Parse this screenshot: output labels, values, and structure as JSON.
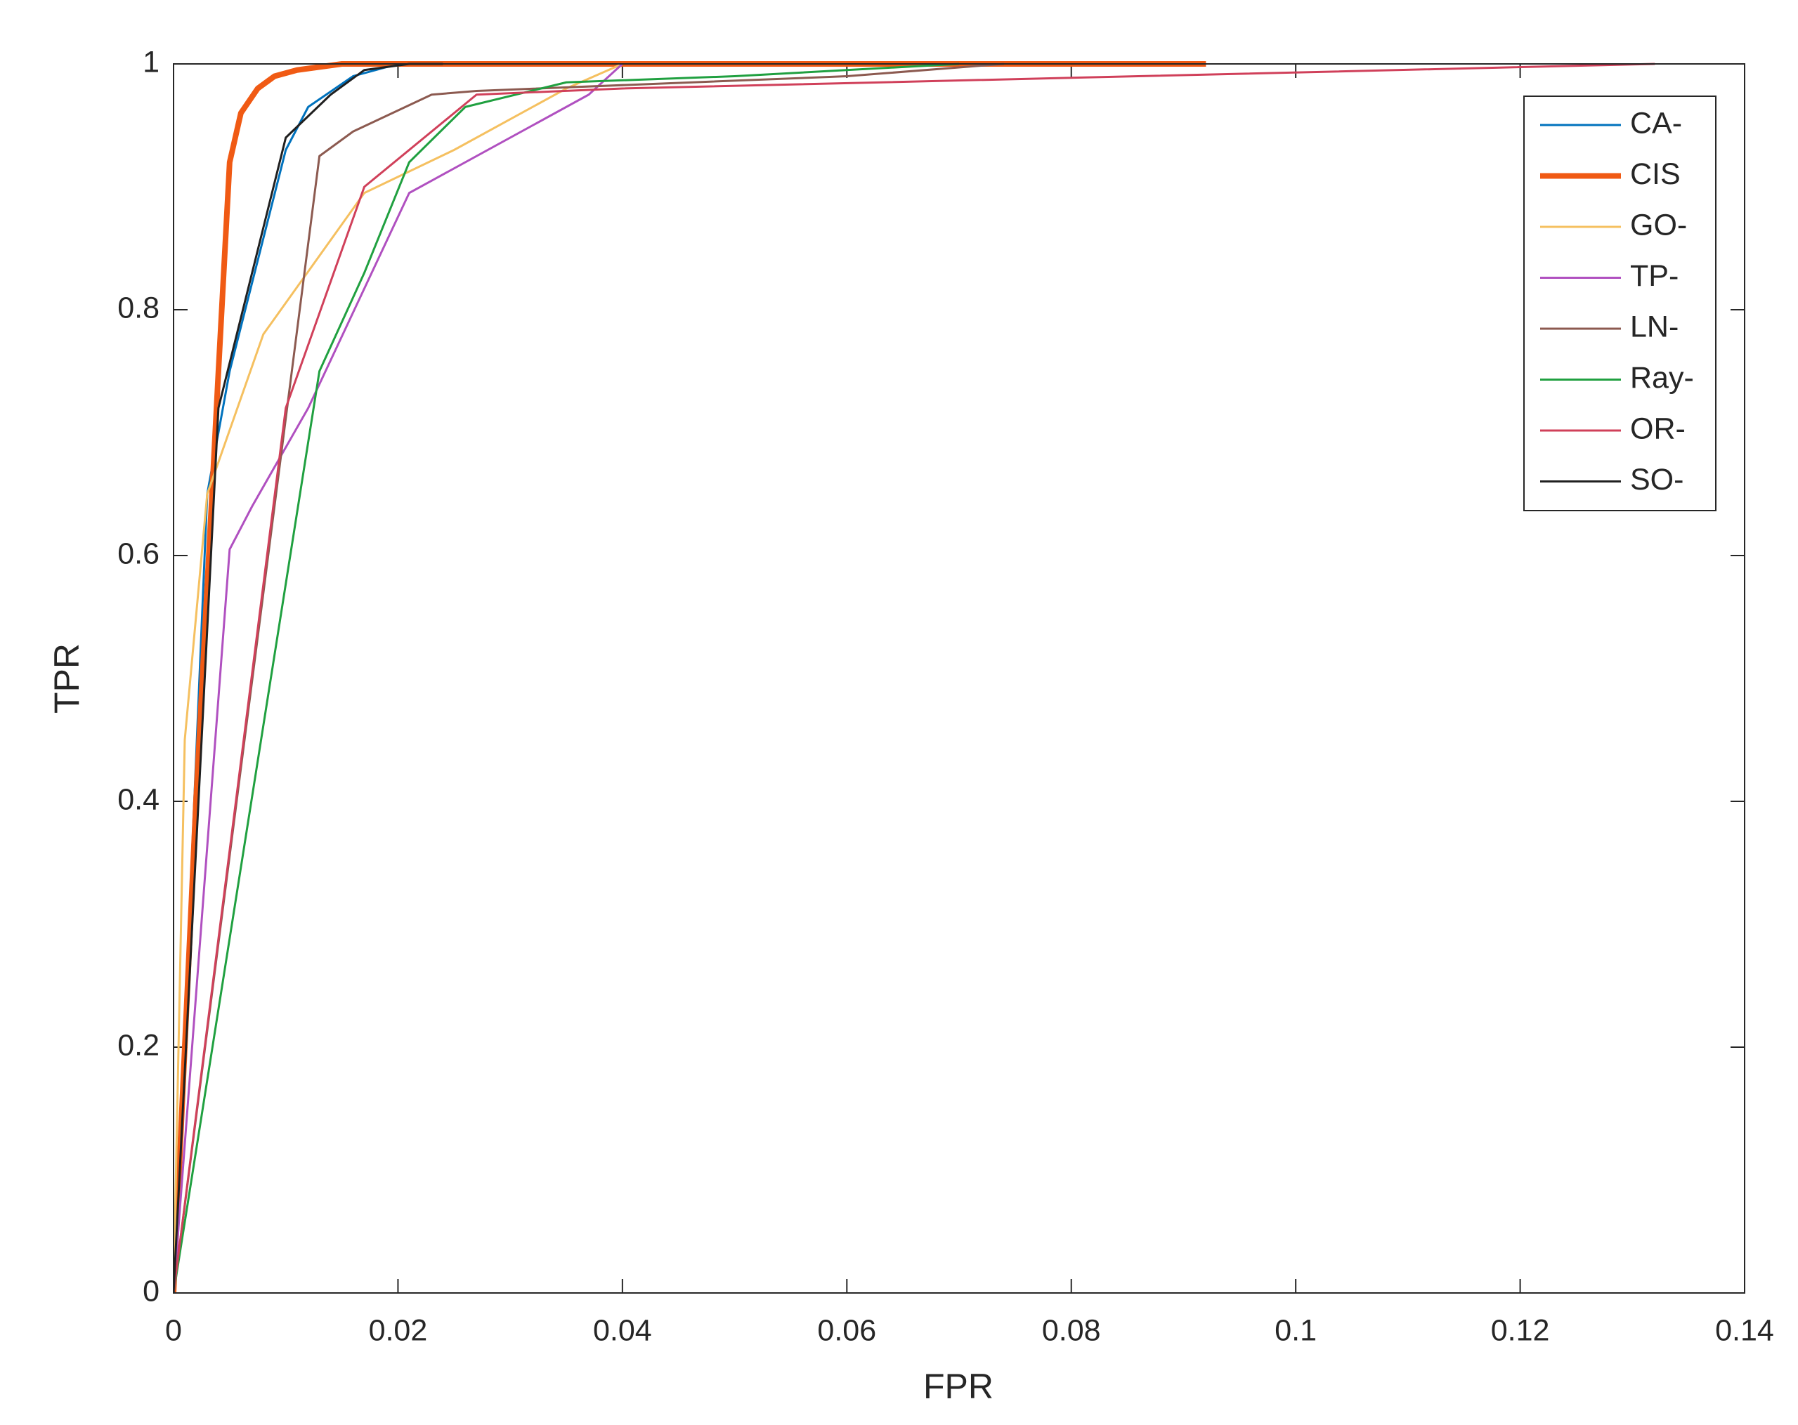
{
  "chart_data": {
    "type": "line",
    "x_label": "FPR",
    "y_label": "TPR",
    "xlim": [
      0,
      0.14
    ],
    "xticks": [
      0,
      0.02,
      0.04,
      0.06,
      0.08,
      0.1,
      0.12,
      0.14
    ],
    "ylim": [
      0,
      1
    ],
    "yticks": [
      0,
      0.2,
      0.4,
      0.6,
      0.8,
      1
    ],
    "legend": "upper-right",
    "series": [
      {
        "name": "CA-",
        "color": "#0072bd",
        "line_width": 3,
        "x": [
          0,
          0.003,
          0.005,
          0.01,
          0.012,
          0.016,
          0.02
        ],
        "values": [
          0,
          0.65,
          0.75,
          0.93,
          0.965,
          0.99,
          1
        ]
      },
      {
        "name": "CIS",
        "color": "#f05a14",
        "line_width": 8,
        "x": [
          0,
          0.002,
          0.004,
          0.005,
          0.006,
          0.0075,
          0.009,
          0.011,
          0.015,
          0.092
        ],
        "values": [
          0,
          0.4,
          0.75,
          0.92,
          0.96,
          0.98,
          0.99,
          0.995,
          1,
          1
        ]
      },
      {
        "name": "GO-",
        "color": "#f5c060",
        "line_width": 3,
        "x": [
          0,
          0.001,
          0.003,
          0.008,
          0.017,
          0.025,
          0.035,
          0.04
        ],
        "values": [
          0,
          0.45,
          0.65,
          0.78,
          0.895,
          0.93,
          0.98,
          1
        ]
      },
      {
        "name": "TP-",
        "color": "#b050c0",
        "line_width": 3,
        "x": [
          0,
          0.005,
          0.007,
          0.012,
          0.021,
          0.037,
          0.04
        ],
        "values": [
          0,
          0.605,
          0.64,
          0.72,
          0.895,
          0.975,
          1
        ]
      },
      {
        "name": "LN-",
        "color": "#8c5a50",
        "line_width": 3,
        "x": [
          0,
          0.013,
          0.016,
          0.023,
          0.027,
          0.06,
          0.074
        ],
        "values": [
          0,
          0.925,
          0.945,
          0.975,
          0.978,
          0.99,
          1
        ]
      },
      {
        "name": "Ray-",
        "color": "#20a040",
        "line_width": 3,
        "x": [
          0,
          0.013,
          0.017,
          0.021,
          0.026,
          0.035,
          0.05,
          0.07
        ],
        "values": [
          0,
          0.75,
          0.83,
          0.92,
          0.965,
          0.985,
          0.99,
          1
        ]
      },
      {
        "name": "OR-",
        "color": "#d0405a",
        "line_width": 3,
        "x": [
          0,
          0.01,
          0.017,
          0.027,
          0.04,
          0.132
        ],
        "values": [
          0,
          0.72,
          0.9,
          0.975,
          0.98,
          1
        ]
      },
      {
        "name": "SO-",
        "color": "#202020",
        "line_width": 3,
        "x": [
          0,
          0.004,
          0.01,
          0.014,
          0.017,
          0.021,
          0.024
        ],
        "values": [
          0,
          0.72,
          0.94,
          0.975,
          0.995,
          1,
          1
        ]
      }
    ]
  }
}
